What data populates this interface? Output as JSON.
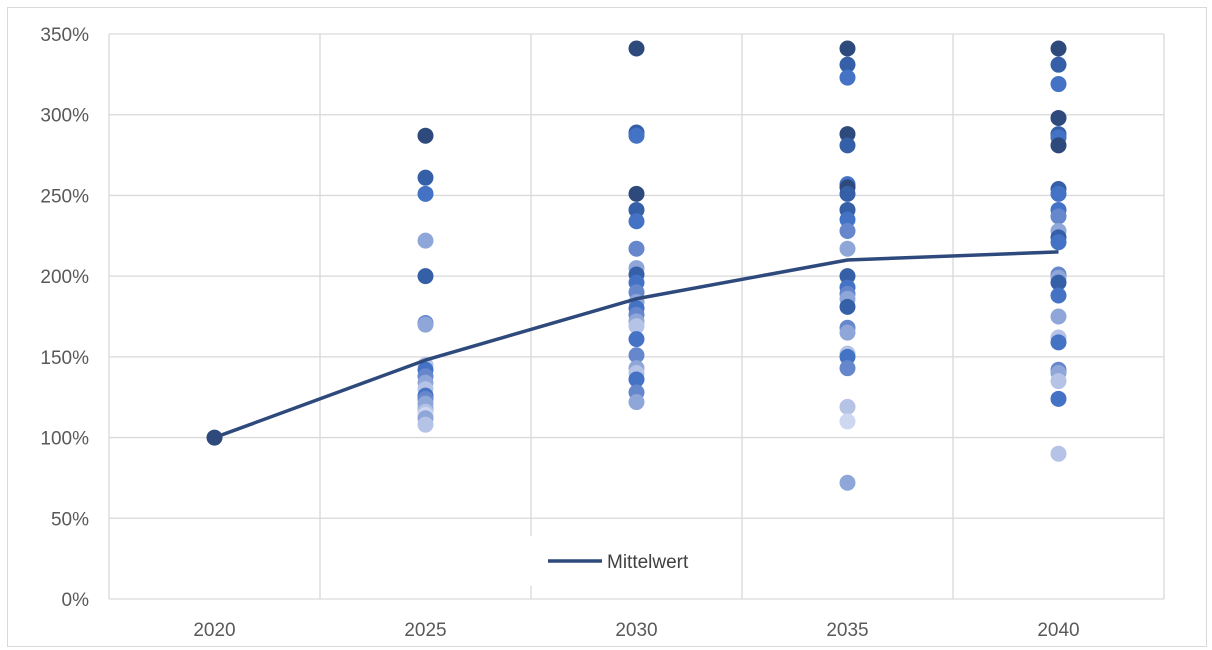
{
  "chart_data": {
    "type": "scatter",
    "title": "",
    "xlabel": "",
    "ylabel": "",
    "x_categories": [
      "2020",
      "2025",
      "2030",
      "2035",
      "2040"
    ],
    "y_ticks": [
      "0%",
      "50%",
      "100%",
      "150%",
      "200%",
      "250%",
      "300%",
      "350%"
    ],
    "ylim": [
      0,
      3.5
    ],
    "grid": true,
    "legend_position": "bottom-center",
    "scatter_points": [
      {
        "x": "2020",
        "values": [
          1.0
        ]
      },
      {
        "x": "2025",
        "values": [
          2.87,
          2.61,
          2.51,
          2.22,
          2.0,
          1.71,
          1.7,
          1.45,
          1.42,
          1.38,
          1.34,
          1.3,
          1.26,
          1.24,
          1.21,
          1.18,
          1.16,
          1.14,
          1.12,
          1.08
        ]
      },
      {
        "x": "2030",
        "values": [
          3.41,
          2.89,
          2.87,
          2.51,
          2.41,
          2.34,
          2.17,
          2.05,
          2.01,
          1.96,
          1.9,
          1.84,
          1.8,
          1.76,
          1.72,
          1.69,
          1.61,
          1.51,
          1.43,
          1.4,
          1.36,
          1.28,
          1.22
        ]
      },
      {
        "x": "2035",
        "values": [
          3.41,
          3.31,
          3.23,
          2.88,
          2.81,
          2.57,
          2.55,
          2.51,
          2.41,
          2.35,
          2.28,
          2.17,
          2.0,
          1.93,
          1.89,
          1.86,
          1.81,
          1.68,
          1.65,
          1.52,
          1.5,
          1.43,
          1.19,
          1.1,
          0.72
        ]
      },
      {
        "x": "2040",
        "values": [
          3.41,
          3.31,
          3.19,
          2.98,
          2.88,
          2.86,
          2.81,
          2.54,
          2.51,
          2.41,
          2.37,
          2.28,
          2.24,
          2.21,
          2.01,
          1.99,
          1.96,
          1.88,
          1.75,
          1.62,
          1.59,
          1.42,
          1.4,
          1.35,
          1.24,
          0.9
        ]
      }
    ],
    "series": [
      {
        "name": "Mittelwert",
        "x": [
          "2020",
          "2025",
          "2030",
          "2035",
          "2040"
        ],
        "values": [
          1.0,
          1.48,
          1.86,
          2.1,
          2.15
        ],
        "color": "#2e4a7d"
      }
    ],
    "point_colors": [
      "#2e4a7d",
      "#3560a8",
      "#4472c4",
      "#6687cc",
      "#8fa6d9",
      "#b4c3e6",
      "#cdd7ef"
    ],
    "gridline_color": "#d9d9d9",
    "axis_label_color": "#595959"
  }
}
